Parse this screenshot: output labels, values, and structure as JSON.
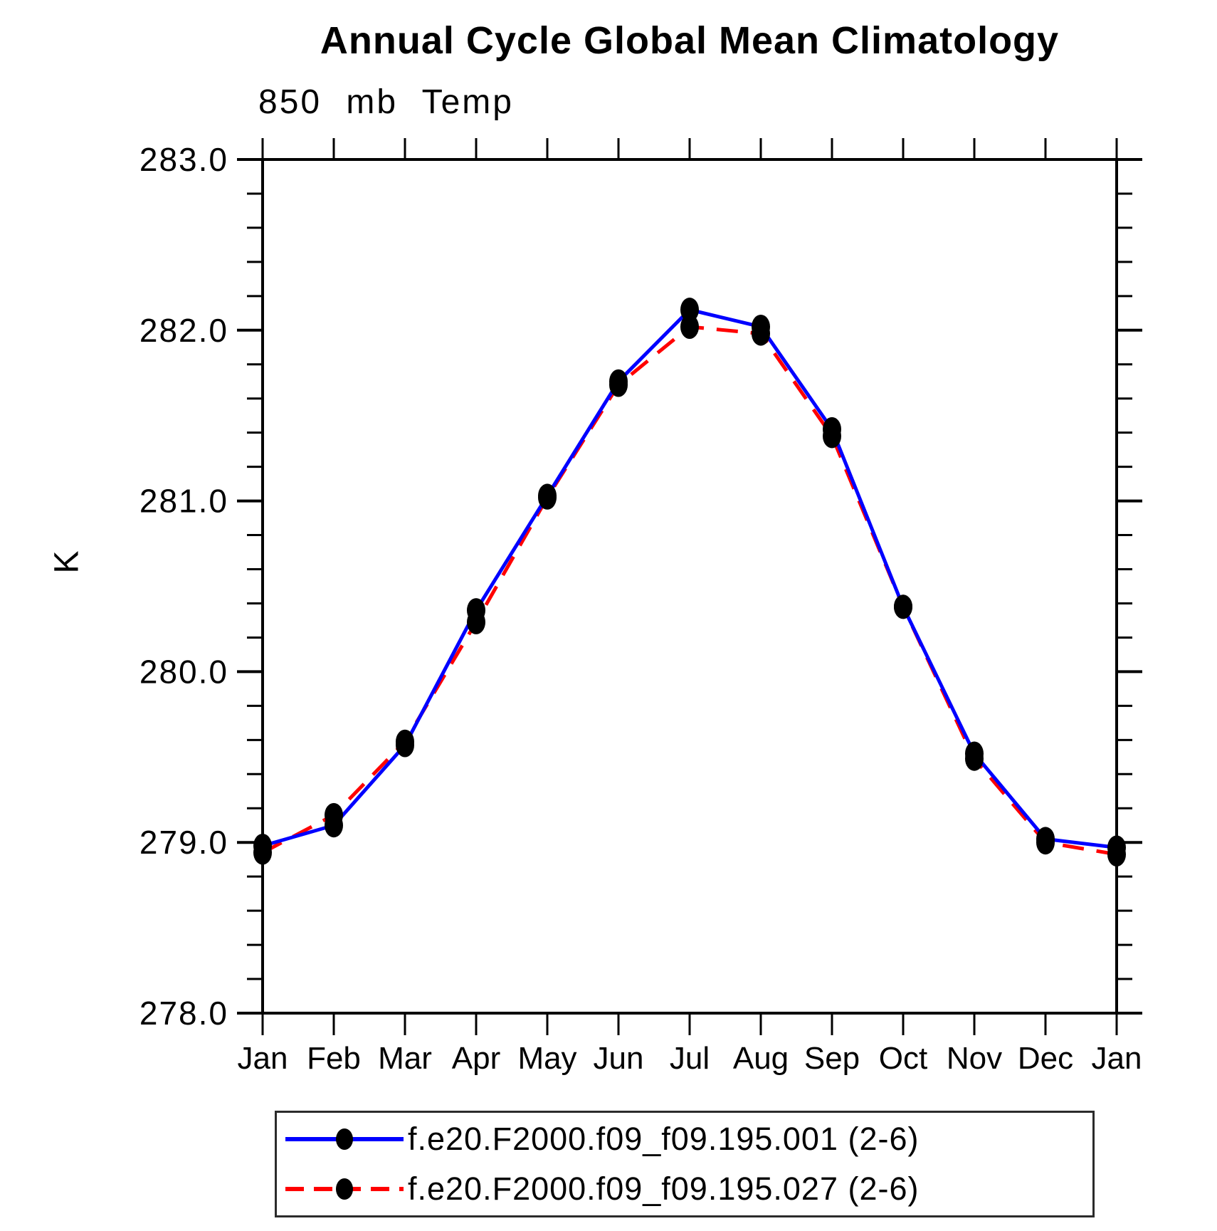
{
  "title": "Annual Cycle Global Mean Climatology",
  "chart_data": {
    "type": "line",
    "title": "Annual Cycle Global Mean Climatology",
    "subtitle": "850 mb Temp",
    "ylabel": "K",
    "categories": [
      "Jan",
      "Feb",
      "Mar",
      "Apr",
      "May",
      "Jun",
      "Jul",
      "Aug",
      "Sep",
      "Oct",
      "Nov",
      "Dec",
      "Jan"
    ],
    "ylim": [
      278.0,
      283.0
    ],
    "ytick_major": 1.0,
    "ytick_minor": 0.2,
    "grid": false,
    "legend_position": "bottom",
    "marker": "filled-circle",
    "marker_color": "#000000",
    "series": [
      {
        "name": "f.e20.F2000.f09_f09.195.001 (2-6)",
        "color": "#0000ff",
        "style": "solid",
        "values": [
          278.98,
          279.1,
          279.57,
          280.36,
          281.03,
          281.7,
          282.12,
          282.02,
          281.42,
          280.38,
          279.52,
          279.02,
          278.97
        ]
      },
      {
        "name": "f.e20.F2000.f09_f09.195.027 (2-6)",
        "color": "#ff0000",
        "style": "dashed",
        "values": [
          278.94,
          279.16,
          279.59,
          280.29,
          281.02,
          281.68,
          282.02,
          281.98,
          281.38,
          280.38,
          279.49,
          279.0,
          278.93
        ]
      }
    ]
  }
}
